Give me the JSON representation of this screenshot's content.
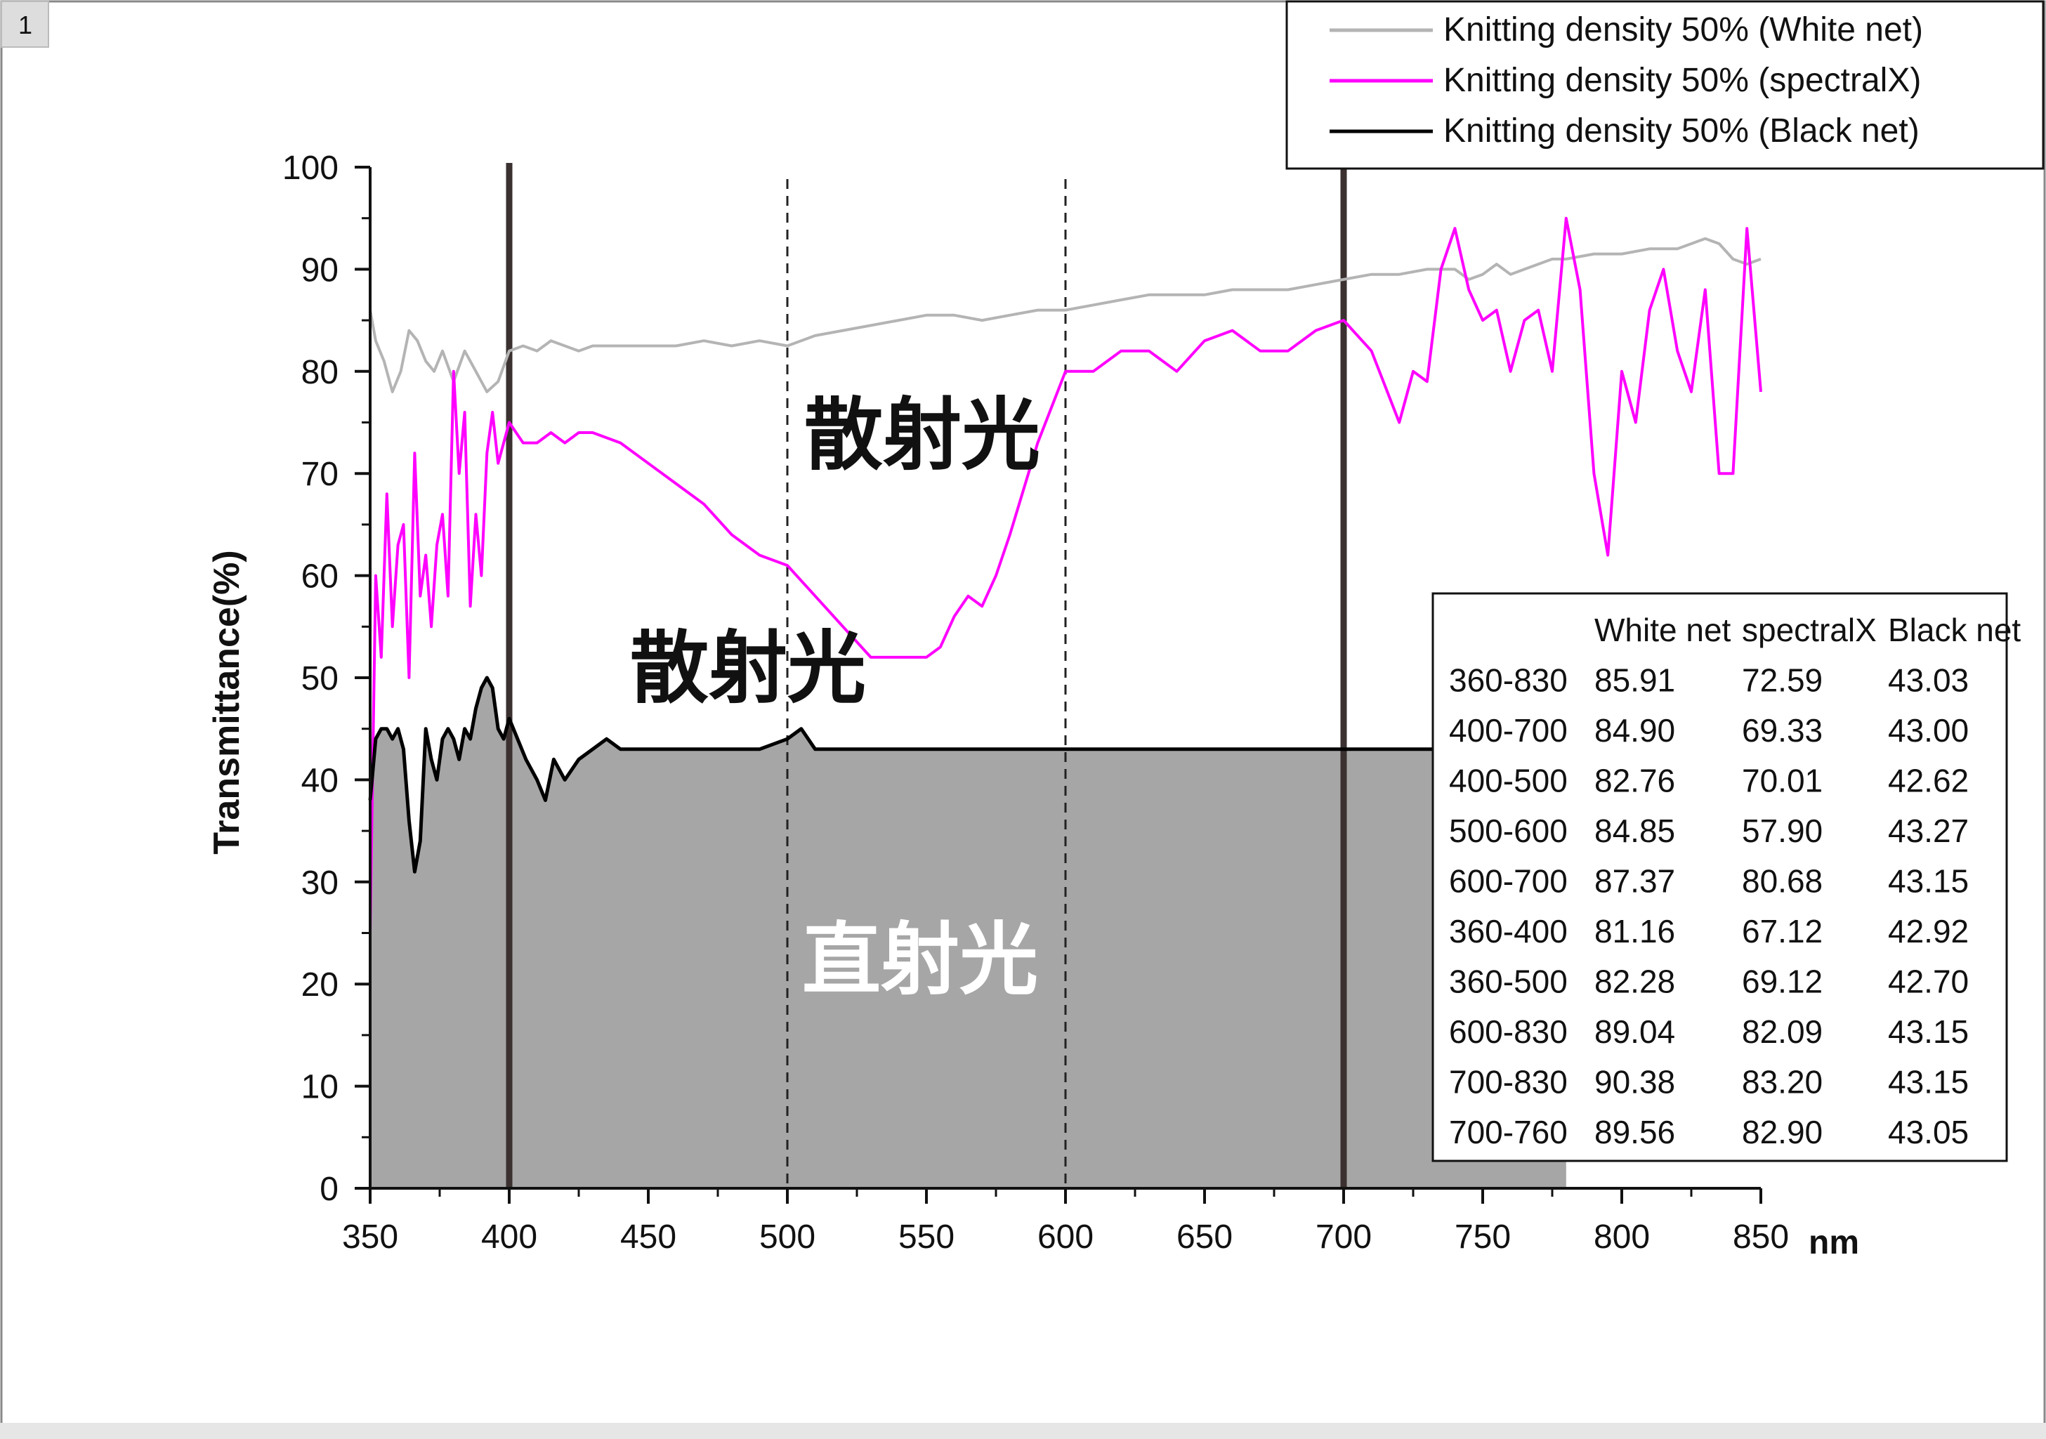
{
  "panel_number": "1",
  "chart_data": {
    "type": "line",
    "xlabel": "",
    "x_unit_label": "nm",
    "ylabel": "Transmittance(%)",
    "xlim": [
      350,
      850
    ],
    "ylim": [
      0,
      100
    ],
    "x_ticks": [
      "350",
      "400",
      "450",
      "500",
      "550",
      "600",
      "650",
      "700",
      "750",
      "800",
      "850"
    ],
    "y_ticks": [
      "0",
      "10",
      "20",
      "30",
      "40",
      "50",
      "60",
      "70",
      "80",
      "90",
      "100"
    ],
    "legend_position": "top-right",
    "series": [
      {
        "name": "Knitting density 50% (White net)",
        "color": "#b4b4b4",
        "x": [
          350,
          352,
          355,
          358,
          361,
          364,
          367,
          370,
          373,
          376,
          380,
          384,
          388,
          392,
          396,
          400,
          405,
          410,
          415,
          420,
          425,
          430,
          440,
          450,
          460,
          470,
          480,
          490,
          500,
          510,
          520,
          530,
          540,
          550,
          560,
          570,
          580,
          590,
          600,
          610,
          620,
          630,
          640,
          650,
          660,
          670,
          680,
          690,
          700,
          710,
          720,
          730,
          740,
          745,
          750,
          755,
          760,
          765,
          770,
          775,
          780,
          790,
          800,
          810,
          820,
          825,
          830,
          835,
          840,
          845,
          850
        ],
        "y": [
          86,
          83,
          81,
          78,
          80,
          84,
          83,
          81,
          80,
          82,
          79,
          82,
          80,
          78,
          79,
          82,
          82.5,
          82,
          83,
          82.5,
          82,
          82.5,
          82.5,
          82.5,
          82.5,
          83,
          82.5,
          83,
          82.5,
          83.5,
          84,
          84.5,
          85,
          85.5,
          85.5,
          85,
          85.5,
          86,
          86,
          86.5,
          87,
          87.5,
          87.5,
          87.5,
          88,
          88,
          88,
          88.5,
          89,
          89.5,
          89.5,
          90,
          90,
          89,
          89.5,
          90.5,
          89.5,
          90,
          90.5,
          91,
          91,
          91.5,
          91.5,
          92,
          92,
          92.5,
          93,
          92.5,
          91,
          90.5,
          91
        ]
      },
      {
        "name": "Knitting density 50% (spectralX)",
        "color": "#ff00ff",
        "x": [
          350,
          352,
          354,
          356,
          358,
          360,
          362,
          364,
          366,
          368,
          370,
          372,
          374,
          376,
          378,
          380,
          382,
          384,
          386,
          388,
          390,
          392,
          394,
          396,
          398,
          400,
          405,
          410,
          415,
          420,
          425,
          430,
          440,
          450,
          460,
          470,
          480,
          490,
          500,
          510,
          520,
          530,
          540,
          550,
          555,
          560,
          565,
          570,
          575,
          580,
          590,
          600,
          610,
          620,
          630,
          640,
          650,
          660,
          670,
          680,
          690,
          700,
          710,
          720,
          725,
          730,
          735,
          740,
          745,
          750,
          755,
          760,
          765,
          770,
          775,
          780,
          785,
          790,
          795,
          800,
          805,
          810,
          815,
          820,
          825,
          830,
          835,
          840,
          845,
          850
        ],
        "y": [
          25,
          60,
          52,
          68,
          55,
          63,
          65,
          50,
          72,
          58,
          62,
          55,
          63,
          66,
          58,
          80,
          70,
          76,
          57,
          66,
          60,
          72,
          76,
          71,
          73,
          75,
          73,
          73,
          74,
          73,
          74,
          74,
          73,
          71,
          69,
          67,
          64,
          62,
          61,
          58,
          55,
          52,
          52,
          52,
          53,
          56,
          58,
          57,
          60,
          64,
          73,
          80,
          80,
          82,
          82,
          80,
          83,
          84,
          82,
          82,
          84,
          85,
          82,
          75,
          80,
          79,
          90,
          94,
          88,
          85,
          86,
          80,
          85,
          86,
          80,
          95,
          88,
          70,
          62,
          80,
          75,
          86,
          90,
          82,
          78,
          88,
          70,
          70,
          94,
          78
        ]
      },
      {
        "name": "Knitting density 50% (Black net)",
        "color": "#000000",
        "x": [
          350,
          352,
          354,
          356,
          358,
          360,
          362,
          364,
          366,
          368,
          370,
          372,
          374,
          376,
          378,
          380,
          382,
          384,
          386,
          388,
          390,
          392,
          394,
          396,
          398,
          400,
          403,
          406,
          410,
          413,
          416,
          420,
          425,
          430,
          435,
          440,
          450,
          460,
          470,
          480,
          490,
          500,
          505,
          510,
          520,
          530,
          540,
          550,
          560,
          570,
          580,
          590,
          600,
          620,
          640,
          660,
          680,
          700,
          720,
          740,
          760,
          780
        ],
        "y": [
          38,
          44,
          45,
          45,
          44,
          45,
          43,
          36,
          31,
          34,
          45,
          42,
          40,
          44,
          45,
          44,
          42,
          45,
          44,
          47,
          49,
          50,
          49,
          45,
          44,
          46,
          44,
          42,
          40,
          38,
          42,
          40,
          42,
          43,
          44,
          43,
          43,
          43,
          43,
          43,
          43,
          44,
          45,
          43,
          43,
          43,
          43,
          43,
          43,
          43,
          43,
          43,
          43,
          43,
          43,
          43,
          43,
          43,
          43,
          43,
          43,
          43
        ]
      }
    ],
    "annotations": {
      "scatter_label_upper": "散射光",
      "scatter_label_lower": "散射光",
      "direct_label": "直射光"
    },
    "reference_lines_x": [
      400,
      500,
      600,
      700
    ],
    "table": {
      "columns": [
        "",
        "White net",
        "spectralX",
        "Black net"
      ],
      "rows": [
        [
          "360-830",
          "85.91",
          "72.59",
          "43.03"
        ],
        [
          "400-700",
          "84.90",
          "69.33",
          "43.00"
        ],
        [
          "400-500",
          "82.76",
          "70.01",
          "42.62"
        ],
        [
          "500-600",
          "84.85",
          "57.90",
          "43.27"
        ],
        [
          "600-700",
          "87.37",
          "80.68",
          "43.15"
        ],
        [
          "360-400",
          "81.16",
          "67.12",
          "42.92"
        ],
        [
          "360-500",
          "82.28",
          "69.12",
          "42.70"
        ],
        [
          "600-830",
          "89.04",
          "82.09",
          "43.15"
        ],
        [
          "700-830",
          "90.38",
          "83.20",
          "43.15"
        ],
        [
          "700-760",
          "89.56",
          "82.90",
          "43.05"
        ]
      ]
    }
  }
}
